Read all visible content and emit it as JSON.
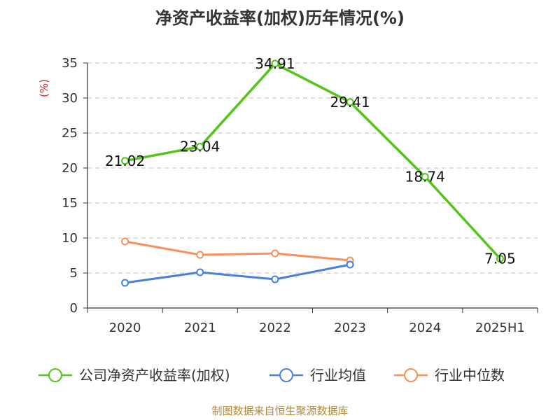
{
  "chart_data": {
    "type": "line",
    "title": "净资产收益率(加权)历年情况(%)",
    "ylabel": "(%)",
    "xlabel": "",
    "categories": [
      "2020",
      "2021",
      "2022",
      "2023",
      "2024",
      "2025H1"
    ],
    "ylim": [
      0,
      35
    ],
    "yticks": [
      0,
      5,
      10,
      15,
      20,
      25,
      30,
      35
    ],
    "grid": true,
    "legend_position": "bottom",
    "series": [
      {
        "name": "公司净资产收益率(加权)",
        "color": "#52c41a",
        "values": [
          21.02,
          23.04,
          34.91,
          29.41,
          18.74,
          7.05
        ],
        "data_labels": [
          "21.02",
          "23.04",
          "34.91",
          "29.41",
          "18.74",
          "7.05"
        ]
      },
      {
        "name": "行业均值",
        "color": "#4a7fdc",
        "values": [
          3.6,
          5.1,
          4.1,
          6.2,
          null,
          null
        ]
      },
      {
        "name": "行业中位数",
        "color": "#f7905a",
        "values": [
          9.5,
          7.6,
          7.8,
          6.8,
          null,
          null
        ]
      }
    ]
  },
  "source": "制图数据来自恒生聚源数据库"
}
